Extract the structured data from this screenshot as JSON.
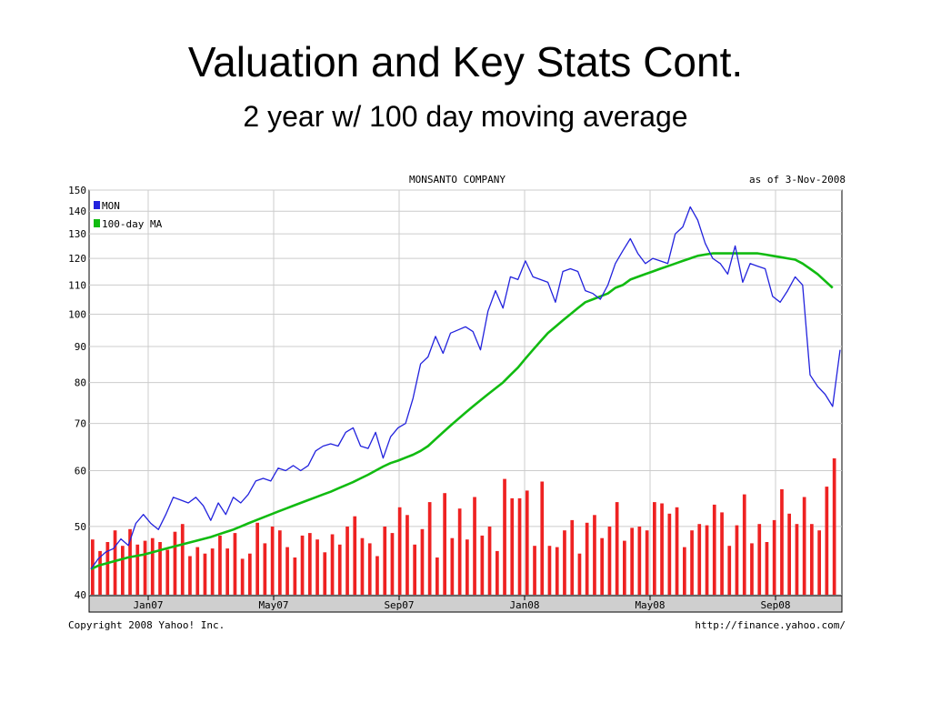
{
  "slide": {
    "title": "Valuation and Key Stats Cont.",
    "subtitle": "2 year w/ 100 day moving average"
  },
  "chart_data": {
    "type": "line",
    "title": "MONSANTO COMPANY",
    "as_of": "as of  3-Nov-2008",
    "footer_left": "Copyright 2008 Yahoo! Inc.",
    "footer_right": "http://finance.yahoo.com/",
    "y_scale": "log",
    "ylim": [
      40,
      150
    ],
    "y_ticks": [
      40,
      50,
      60,
      70,
      80,
      90,
      100,
      110,
      120,
      130,
      140,
      150
    ],
    "x_tick_labels": [
      "Jan07",
      "May07",
      "Sep07",
      "Jan08",
      "May08",
      "Sep08"
    ],
    "grid": true,
    "legend_position": "top-left",
    "colors": {
      "MON": "#2222dd",
      "MA": "#11bb11",
      "volume": "#ee2222",
      "grid": "#cccccc"
    },
    "series": [
      {
        "name": "MON",
        "values": [
          43.5,
          45,
          46,
          46.5,
          48,
          47,
          50.5,
          52,
          50.5,
          49.5,
          52,
          55,
          54.5,
          54,
          55,
          53.5,
          51,
          54,
          52,
          55,
          54,
          55.5,
          58,
          58.5,
          58,
          60.5,
          60,
          61,
          60,
          61,
          64,
          65,
          65.5,
          65,
          68,
          69,
          65,
          64.5,
          68,
          62.5,
          67,
          69,
          70,
          76,
          85,
          87,
          93,
          88,
          94,
          95,
          96,
          94.5,
          89,
          101,
          108,
          102,
          113,
          112,
          119,
          113,
          112,
          111,
          104,
          115,
          116,
          115,
          108,
          107,
          105,
          110,
          118,
          123,
          128,
          122,
          118,
          120,
          119,
          118,
          130,
          133,
          142,
          136,
          126,
          120,
          118,
          114,
          125,
          111,
          118,
          117,
          116,
          106,
          104,
          108,
          113,
          110,
          82,
          79,
          77,
          74,
          89
        ]
      },
      {
        "name": "100-day MA",
        "values": [
          43.5,
          44,
          44.3,
          44.6,
          44.9,
          45.2,
          45.4,
          45.6,
          45.9,
          46.2,
          46.5,
          46.8,
          47.1,
          47.4,
          47.7,
          48,
          48.3,
          48.7,
          49.1,
          49.5,
          50,
          50.5,
          51,
          51.5,
          52,
          52.5,
          53,
          53.5,
          54,
          54.5,
          55,
          55.5,
          56,
          56.6,
          57.2,
          57.8,
          58.5,
          59.2,
          60,
          60.8,
          61.5,
          62,
          62.6,
          63.2,
          64,
          65,
          66.5,
          68,
          69.5,
          71,
          72.5,
          74,
          75.5,
          77,
          78.5,
          80,
          82,
          84,
          86.5,
          89,
          91.5,
          94,
          96,
          98,
          100,
          102,
          104,
          105,
          106,
          107,
          109,
          110,
          112,
          113,
          114,
          115,
          116,
          117,
          118,
          119,
          120,
          121,
          121.5,
          122,
          122,
          122,
          122,
          122,
          122,
          122,
          121.5,
          121,
          120.5,
          120,
          119.5,
          118,
          116,
          114,
          111.5,
          109
        ]
      }
    ],
    "volume": [
      4.3,
      3.4,
      4.1,
      5.0,
      3.8,
      5.1,
      3.9,
      4.2,
      4.4,
      4.1,
      3.5,
      4.9,
      5.5,
      3.0,
      3.7,
      3.2,
      3.6,
      4.6,
      3.6,
      4.8,
      2.8,
      3.2,
      5.6,
      4.0,
      5.3,
      5.0,
      3.7,
      2.9,
      4.6,
      4.8,
      4.3,
      3.3,
      4.7,
      3.9,
      5.3,
      6.1,
      4.4,
      4.0,
      3.0,
      5.3,
      4.8,
      6.8,
      6.2,
      3.9,
      5.1,
      7.2,
      2.9,
      7.9,
      4.4,
      6.7,
      4.3,
      7.6,
      4.6,
      5.3,
      3.4,
      9.0,
      7.5,
      7.5,
      8.1,
      3.8,
      8.8,
      3.8,
      3.7,
      5.0,
      5.8,
      3.2,
      5.6,
      6.2,
      4.4,
      5.3,
      7.2,
      4.2,
      5.2,
      5.3,
      5.0,
      7.2,
      7.1,
      6.3,
      6.8,
      3.7,
      5.0,
      5.5,
      5.4,
      7.0,
      6.4,
      3.8,
      5.4,
      7.8,
      4.0,
      5.5,
      4.1,
      5.8,
      8.2,
      6.3,
      5.5,
      7.6,
      5.5,
      5.0,
      8.4,
      10.6
    ]
  }
}
